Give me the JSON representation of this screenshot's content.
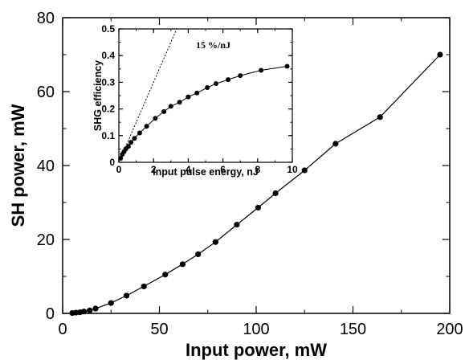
{
  "chart_data": [
    {
      "type": "line",
      "xlabel": "Input power, mW",
      "ylabel": "SH power, mW",
      "xlim": [
        0,
        200
      ],
      "ylim": [
        0,
        80
      ],
      "x_ticks": [
        "0",
        "50",
        "100",
        "150",
        "200"
      ],
      "y_ticks": [
        "0",
        "20",
        "40",
        "60",
        "80"
      ],
      "grid": false,
      "markers": "filled-circle",
      "series": [
        {
          "x": [
            5,
            7,
            9,
            11,
            14,
            17,
            25,
            33,
            42,
            53,
            62,
            70,
            79,
            90,
            101,
            110,
            125,
            141,
            164,
            195
          ],
          "y": [
            0.1,
            0.2,
            0.3,
            0.5,
            0.8,
            1.3,
            2.8,
            4.8,
            7.3,
            10.5,
            13.3,
            16.0,
            19.3,
            24.0,
            28.6,
            32.5,
            38.7,
            45.9,
            53.1,
            70.0
          ]
        }
      ]
    },
    {
      "type": "line",
      "inset": true,
      "xlabel": "Input pulse energy, nJ",
      "ylabel": "SHG efficiency",
      "xlim": [
        0,
        10
      ],
      "ylim": [
        0,
        0.5
      ],
      "x_ticks": [
        "0",
        "2",
        "4",
        "6",
        "8",
        "10"
      ],
      "y_ticks": [
        "0",
        "0.1",
        "0.2",
        "0.3",
        "0.4",
        "0.5"
      ],
      "grid": false,
      "markers": "filled-circle",
      "series": [
        {
          "x": [
            0.1,
            0.2,
            0.3,
            0.4,
            0.55,
            0.7,
            0.9,
            1.2,
            1.6,
            2.1,
            2.6,
            3.0,
            3.5,
            4.0,
            4.5,
            5.1,
            5.6,
            6.3,
            7.0,
            8.2,
            9.7
          ],
          "y": [
            0.015,
            0.03,
            0.04,
            0.05,
            0.06,
            0.075,
            0.09,
            0.11,
            0.135,
            0.165,
            0.19,
            0.21,
            0.225,
            0.245,
            0.26,
            0.28,
            0.295,
            0.31,
            0.325,
            0.345,
            0.36
          ]
        }
      ],
      "reference_line": {
        "label": "15 %/nJ",
        "slope": 0.15
      }
    }
  ]
}
